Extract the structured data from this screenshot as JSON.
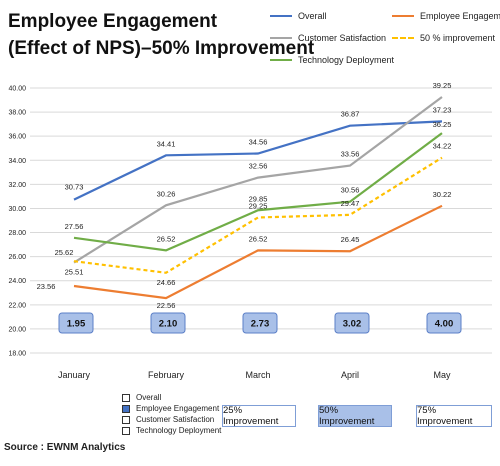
{
  "title_line1": "Employee Engagement",
  "title_line2": "(Effect of NPS)–50% Improvement",
  "source": "Source : EWNM Analytics",
  "improvement_boxes": [
    "25% Improvement",
    "50% Improvement",
    "75% Improvement"
  ],
  "bottom_legend": [
    {
      "label": "Overall",
      "filled": false
    },
    {
      "label": "Employee Engagement",
      "filled": true
    },
    {
      "label": "Customer Satisfaction",
      "filled": false
    },
    {
      "label": "Technology Deployment",
      "filled": false
    }
  ],
  "chart_data": {
    "type": "line",
    "categories": [
      "January",
      "February",
      "March",
      "April",
      "May"
    ],
    "ylim": [
      18,
      40
    ],
    "yticks": [
      "18.00",
      "20.00",
      "22.00",
      "24.00",
      "26.00",
      "28.00",
      "30.00",
      "32.00",
      "34.00",
      "36.00",
      "38.00",
      "40.00"
    ],
    "grid": "horizontal",
    "series": [
      {
        "name": "Overall",
        "color": "#4472c4",
        "dashed": false,
        "values": [
          30.73,
          34.41,
          34.56,
          36.87,
          37.23
        ],
        "labels": [
          "30.73",
          "34.41",
          "34.56",
          "36.87",
          "37.23"
        ]
      },
      {
        "name": "Employee Engagement",
        "color": "#ed7d31",
        "dashed": false,
        "values": [
          23.56,
          22.56,
          26.52,
          26.45,
          30.22
        ],
        "labels": [
          "23.56",
          "22.56",
          "26.52",
          "26.45",
          "30.22"
        ]
      },
      {
        "name": "Customer Satisfaction",
        "color": "#a5a5a5",
        "dashed": false,
        "values": [
          25.51,
          30.26,
          32.56,
          33.56,
          39.25
        ],
        "labels": [
          "25.51",
          "30.26",
          "32.56",
          "33.56",
          "39.25"
        ]
      },
      {
        "name": "50 % improvement",
        "color": "#ffc000",
        "dashed": true,
        "values": [
          25.62,
          24.66,
          29.25,
          29.47,
          34.22
        ],
        "labels": [
          "25.62",
          "24.66",
          "29.25",
          "29.47",
          "34.22"
        ]
      },
      {
        "name": "Technology Deployment",
        "color": "#70ad47",
        "dashed": false,
        "values": [
          27.56,
          26.52,
          29.85,
          30.56,
          36.25
        ],
        "labels": [
          "27.56",
          "26.52",
          "29.85",
          "30.56",
          "36.25"
        ]
      }
    ],
    "box_values": [
      "1.95",
      "2.10",
      "2.73",
      "3.02",
      "4.00"
    ]
  }
}
